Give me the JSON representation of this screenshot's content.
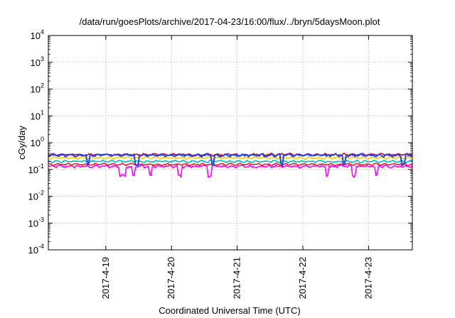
{
  "chart_data": {
    "type": "line",
    "title": "/data/run/goesPlots/archive/2017-04-23/16:00/flux/../bryn/5daysMoon.plot",
    "xlabel": "Coordinated Universal Time (UTC)",
    "ylabel": "cGy/day",
    "x_range": [
      "2017-04-18 03:00",
      "2017-04-23 16:00"
    ],
    "x_ticks": [
      "2017-4-19",
      "2017-4-20",
      "2017-4-21",
      "2017-4-22",
      "2017-4-23"
    ],
    "y_scale": "log",
    "ylim": [
      0.0001,
      10000
    ],
    "y_ticks": [
      {
        "base": "10",
        "exp": "4"
      },
      {
        "base": "10",
        "exp": "3"
      },
      {
        "base": "10",
        "exp": "2"
      },
      {
        "base": "10",
        "exp": "1"
      },
      {
        "base": "10",
        "exp": "0"
      },
      {
        "base": "10",
        "exp": "-1"
      },
      {
        "base": "10",
        "exp": "-2"
      },
      {
        "base": "10",
        "exp": "-3"
      },
      {
        "base": "10",
        "exp": "-4"
      }
    ],
    "grid": true,
    "legend": "none",
    "series": [
      {
        "color": "#ff00ff",
        "base": 0.13,
        "spread": 0.09,
        "dips": [
          1.1,
          1.15,
          1.3,
          1.55,
          2.0,
          2.45,
          4.25,
          4.65,
          5.0
        ]
      },
      {
        "color": "#e8202a",
        "base": 0.155,
        "spread": 0.05,
        "dips": []
      },
      {
        "color": "#00bbbb",
        "base": 0.2,
        "spread": 0.06,
        "dips": []
      },
      {
        "color": "#ffcc00",
        "base": 0.27,
        "spread": 0.06,
        "dips": []
      },
      {
        "color": "#c80a28",
        "base": 0.36,
        "spread": 0.07,
        "dips": []
      },
      {
        "color": "#2244ee",
        "base": 0.34,
        "spread": 0.08,
        "dips": [
          0.6,
          1.35,
          2.5,
          3.55,
          4.5,
          5.4
        ]
      }
    ]
  }
}
